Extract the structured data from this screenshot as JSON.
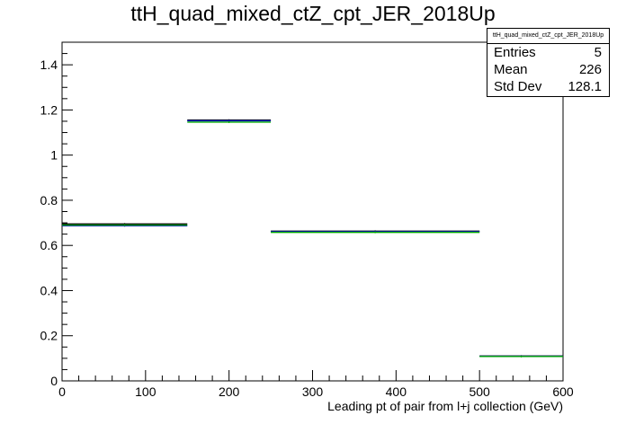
{
  "chart_data": {
    "type": "histogram",
    "title": "ttH_quad_mixed_ctZ_cpt_JER_2018Up",
    "xlabel": "Leading pt of pair from l+j collection (GeV)",
    "ylabel": "",
    "xlim": [
      0,
      600
    ],
    "ylim": [
      0,
      1.5
    ],
    "x_ticks": [
      0,
      100,
      200,
      300,
      400,
      500,
      600
    ],
    "y_ticks": [
      0,
      0.2,
      0.4,
      0.6,
      0.8,
      1,
      1.2,
      1.4
    ],
    "bins": [
      {
        "low": 0,
        "high": 150
      },
      {
        "low": 150,
        "high": 250
      },
      {
        "low": 250,
        "high": 500
      },
      {
        "low": 500,
        "high": 600
      }
    ],
    "series": [
      {
        "color": "#000000",
        "values": [
          0.695,
          1.155,
          0.663,
          0.11
        ]
      },
      {
        "color": "#0000cc",
        "values": [
          0.687,
          1.152,
          0.661,
          0.109
        ]
      },
      {
        "color": "#00aa00",
        "values": [
          0.69,
          1.146,
          0.658,
          0.108
        ]
      }
    ],
    "legend": "none",
    "grid": false
  },
  "stats": {
    "name": "ttH_quad_mixed_ctZ_cpt_JER_2018Up",
    "rows": [
      {
        "label": "Entries",
        "value": "5"
      },
      {
        "label": "Mean",
        "value": "226"
      },
      {
        "label": "Std Dev",
        "value": "128.1"
      }
    ]
  }
}
